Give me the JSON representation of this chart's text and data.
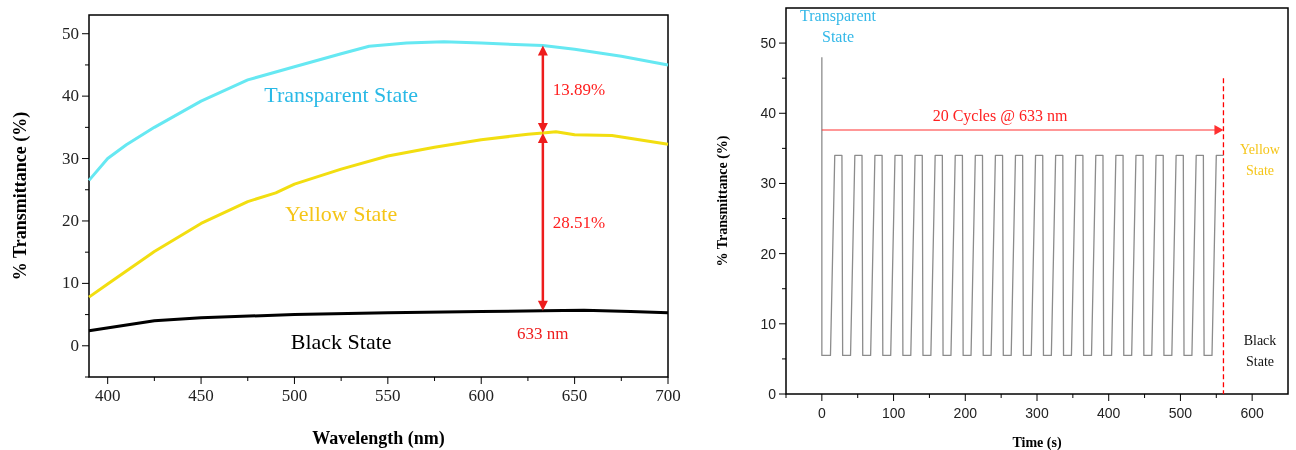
{
  "chart_data": [
    {
      "type": "line",
      "xlabel": "Wavelength (nm)",
      "ylabel": "% Transmittance (%)",
      "xlim": [
        390,
        700
      ],
      "ylim": [
        -5,
        53
      ],
      "xticks": [
        400,
        {
          "value": 425,
          "label": null
        },
        450,
        {
          "value": 475,
          "label": null
        },
        500,
        {
          "value": 525,
          "label": null
        },
        550,
        {
          "value": 575,
          "label": null
        },
        600,
        {
          "value": 625,
          "label": null
        },
        650,
        {
          "value": 675,
          "label": null
        },
        700
      ],
      "yticks": [
        {
          "value": -5,
          "label": null
        },
        0,
        {
          "value": 5,
          "label": null
        },
        10,
        {
          "value": 15,
          "label": null
        },
        20,
        {
          "value": 25,
          "label": null
        },
        30,
        {
          "value": 35,
          "label": null
        },
        40,
        {
          "value": 45,
          "label": null
        },
        50
      ],
      "series": [
        {
          "name": "Transparent State",
          "color": "#66e8f2",
          "x": [
            390,
            400,
            410,
            425,
            450,
            475,
            500,
            525,
            540,
            560,
            580,
            600,
            633,
            650,
            675,
            700
          ],
          "values": [
            26.5,
            30,
            32.2,
            35,
            39.2,
            42.6,
            44.7,
            46.8,
            48,
            48.5,
            48.7,
            48.5,
            48.1,
            47.5,
            46.4,
            45
          ]
        },
        {
          "name": "Yellow State",
          "color": "#f2de10",
          "x": [
            390,
            400,
            425,
            450,
            475,
            490,
            500,
            525,
            550,
            575,
            600,
            625,
            633,
            640,
            650,
            670,
            700
          ],
          "values": [
            7.8,
            9.9,
            15.1,
            19.6,
            23.1,
            24.5,
            25.9,
            28.3,
            30.4,
            31.8,
            33,
            33.9,
            34.1,
            34.3,
            33.8,
            33.7,
            32.3
          ]
        },
        {
          "name": "Black State",
          "color": "#000000",
          "x": [
            390,
            425,
            450,
            500,
            550,
            600,
            633,
            655,
            680,
            700
          ],
          "values": [
            2.4,
            4,
            4.5,
            5,
            5.3,
            5.5,
            5.6,
            5.7,
            5.5,
            5.3
          ]
        }
      ],
      "ref_lines": [
        {
          "axis": "x",
          "value": 633,
          "label": "633 nm",
          "color": "#ee1c1c"
        }
      ],
      "annotations": [
        "13.89%",
        "28.51%"
      ]
    },
    {
      "type": "line",
      "xlabel": "Time (s)",
      "ylabel": "% Transmittance (%)",
      "xlim": [
        -50,
        650
      ],
      "ylim": [
        0,
        55
      ],
      "xticks": [
        {
          "value": -50,
          "label": null
        },
        0,
        {
          "value": 50,
          "label": null
        },
        100,
        {
          "value": 150,
          "label": null
        },
        200,
        {
          "value": 250,
          "label": null
        },
        300,
        {
          "value": 350,
          "label": null
        },
        400,
        {
          "value": 450,
          "label": null
        },
        500,
        {
          "value": 550,
          "label": null
        },
        600
      ],
      "yticks": [
        0,
        {
          "value": 5,
          "label": null
        },
        10,
        {
          "value": 15,
          "label": null
        },
        20,
        {
          "value": 25,
          "label": null
        },
        30,
        {
          "value": 35,
          "label": null
        },
        40,
        {
          "value": 45,
          "label": null
        },
        50
      ],
      "series": [
        {
          "color": "#8c8c8c",
          "x": [
            0,
            0,
            12,
            18,
            28,
            29,
            40,
            46,
            56,
            57,
            68,
            74,
            84,
            85,
            96,
            102,
            112,
            113,
            124,
            130,
            140,
            141,
            152,
            158,
            168,
            169,
            180,
            186,
            196,
            197,
            208,
            214,
            224,
            225,
            236,
            242,
            252,
            253,
            264,
            270,
            280,
            281,
            292,
            298,
            308,
            309,
            320,
            326,
            336,
            337,
            348,
            354,
            364,
            365,
            376,
            382,
            392,
            393,
            404,
            410,
            420,
            421,
            432,
            438,
            448,
            449,
            460,
            466,
            476,
            477,
            488,
            494,
            504,
            505,
            516,
            522,
            532,
            533,
            544,
            550,
            560
          ],
          "values": [
            48,
            5.5,
            5.5,
            34,
            34,
            5.5,
            5.5,
            34,
            34,
            5.5,
            5.5,
            34,
            34,
            5.5,
            5.5,
            34,
            34,
            5.5,
            5.5,
            34,
            34,
            5.5,
            5.5,
            34,
            34,
            5.5,
            5.5,
            34,
            34,
            5.5,
            5.5,
            34,
            34,
            5.5,
            5.5,
            34,
            34,
            5.5,
            5.5,
            34,
            34,
            5.5,
            5.5,
            34,
            34,
            5.5,
            5.5,
            34,
            34,
            5.5,
            5.5,
            34,
            34,
            5.5,
            5.5,
            34,
            34,
            5.5,
            5.5,
            34,
            34,
            5.5,
            5.5,
            34,
            34,
            5.5,
            5.5,
            34,
            34,
            5.5,
            5.5,
            34,
            34,
            5.5,
            5.5,
            34,
            34,
            5.5,
            5.5,
            34,
            34
          ]
        }
      ],
      "ref_lines": [
        {
          "axis": "x",
          "value": 560,
          "color": "#ff0000",
          "line_style": "dashed"
        }
      ],
      "annotations": [
        "Transparent State",
        "20 Cycles @ 633 nm",
        "Yellow State",
        "Black State"
      ]
    }
  ]
}
